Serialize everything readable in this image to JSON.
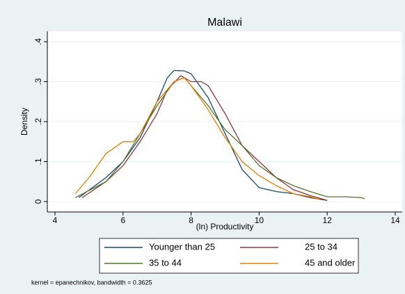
{
  "chart_data": {
    "type": "line",
    "title": "Malawi",
    "x_label": "(ln) Productivity",
    "y_label": "Density",
    "note": "kernel = epanechnikov, bandwidth = 0.3625",
    "xlim": [
      4,
      14
    ],
    "xticks": [
      4,
      6,
      8,
      10,
      12,
      14
    ],
    "ylim": [
      0,
      0.4
    ],
    "yticks": [
      0,
      {
        "value": 0.1,
        "label": ".1"
      },
      {
        "value": 0.2,
        "label": ".2"
      },
      {
        "value": 0.3,
        "label": ".3"
      },
      {
        "value": 0.4,
        "label": ".4"
      }
    ],
    "grid": true,
    "series": [
      {
        "name": "Younger than 25",
        "color": "#1a476f",
        "x": [
          4.7,
          5.5,
          6,
          6.5,
          7,
          7.3,
          7.5,
          7.8,
          8,
          8.5,
          9,
          9.5,
          10,
          10.5,
          11,
          11.5,
          12
        ],
        "values": [
          0.01,
          0.06,
          0.1,
          0.16,
          0.25,
          0.31,
          0.328,
          0.327,
          0.32,
          0.26,
          0.17,
          0.08,
          0.035,
          0.025,
          0.02,
          0.01,
          0.003
        ]
      },
      {
        "name": "25 to 34",
        "color": "#90353b",
        "x": [
          4.8,
          5.5,
          6,
          6.5,
          7,
          7.3,
          7.7,
          8,
          8.3,
          8.5,
          9,
          9.5,
          10,
          10.5,
          11,
          11.5,
          12
        ],
        "values": [
          0.01,
          0.05,
          0.09,
          0.15,
          0.22,
          0.28,
          0.315,
          0.3,
          0.3,
          0.29,
          0.22,
          0.14,
          0.1,
          0.06,
          0.03,
          0.015,
          0.003
        ]
      },
      {
        "name": "35 to 44",
        "color": "#55752f",
        "x": [
          4.6,
          5.5,
          6,
          6.5,
          7,
          7.5,
          7.8,
          8,
          8.5,
          9,
          9.5,
          10,
          10.5,
          11,
          11.5,
          12,
          12.5,
          13,
          13.1
        ],
        "values": [
          0.01,
          0.05,
          0.1,
          0.17,
          0.24,
          0.3,
          0.31,
          0.29,
          0.24,
          0.18,
          0.14,
          0.09,
          0.06,
          0.04,
          0.025,
          0.012,
          0.012,
          0.01,
          0.007
        ]
      },
      {
        "name": "45 and older",
        "color": "#e37e00",
        "x": [
          4.6,
          5,
          5.5,
          6,
          6.3,
          6.5,
          7,
          7.5,
          7.8,
          8,
          8.5,
          9,
          9.5,
          10,
          10.5,
          11,
          11.5,
          11.8
        ],
        "values": [
          0.02,
          0.06,
          0.12,
          0.15,
          0.15,
          0.17,
          0.25,
          0.3,
          0.31,
          0.29,
          0.23,
          0.16,
          0.1,
          0.065,
          0.04,
          0.02,
          0.012,
          0.005
        ]
      }
    ]
  }
}
